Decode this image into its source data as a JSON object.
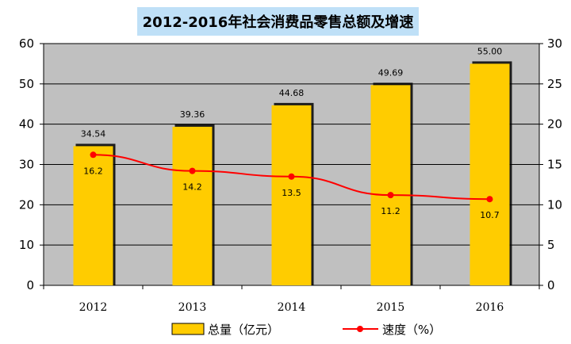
{
  "chart_data": {
    "type": "bar",
    "title": "2012-2016年社会消费品零售总额及增速",
    "categories": [
      "2012",
      "2013",
      "2014",
      "2015",
      "2016"
    ],
    "series": [
      {
        "name": "总量（亿元）",
        "type": "bar",
        "axis": "left",
        "color": "#ffcc00",
        "values": [
          34.54,
          39.36,
          44.68,
          49.69,
          55.0
        ],
        "labels": [
          "34.54",
          "39.36",
          "44.68",
          "49.69",
          "55.00"
        ]
      },
      {
        "name": "速度（%）",
        "type": "line",
        "axis": "right",
        "color": "#ff0000",
        "values": [
          16.2,
          14.2,
          13.5,
          11.2,
          10.7
        ],
        "labels": [
          "16.2",
          "14.2",
          "13.5",
          "11.2",
          "10.7"
        ]
      }
    ],
    "ylim_left": [
      0,
      60
    ],
    "yticks_left": [
      "0",
      "10",
      "20",
      "30",
      "40",
      "50",
      "60"
    ],
    "ylim_right": [
      0,
      30
    ],
    "yticks_right": [
      "0",
      "5",
      "10",
      "15",
      "20",
      "25",
      "30"
    ],
    "grid": true,
    "plot_background": "#c0c0c0",
    "legend_position": "bottom"
  }
}
